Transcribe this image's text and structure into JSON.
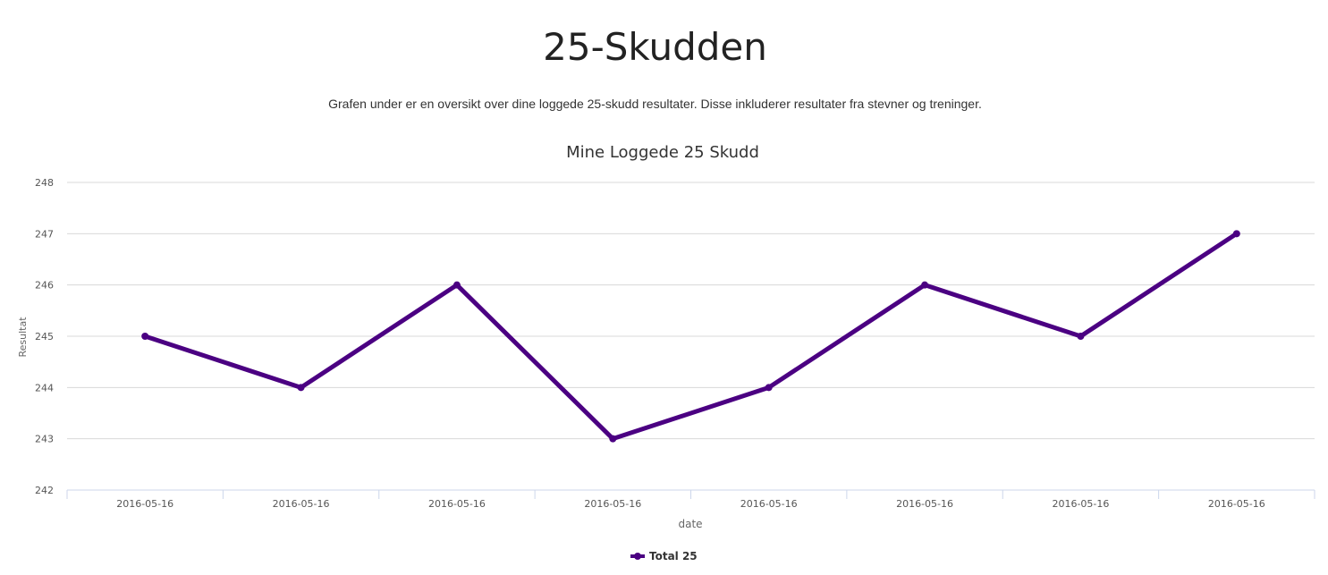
{
  "page": {
    "title": "25-Skudden",
    "description": "Grafen under er en oversikt over dine loggede 25-skudd resultater. Disse inkluderer resultater fra stevner og treninger."
  },
  "chart_data": {
    "type": "line",
    "title": "Mine Loggede 25 Skudd",
    "xlabel": "date",
    "ylabel": "Resultat",
    "categories": [
      "2016-05-16",
      "2016-05-16",
      "2016-05-16",
      "2016-05-16",
      "2016-05-16",
      "2016-05-16",
      "2016-05-16",
      "2016-05-16"
    ],
    "series": [
      {
        "name": "Total 25",
        "color": "#4b0082",
        "values": [
          245,
          244,
          246,
          243,
          244,
          246,
          245,
          247
        ]
      }
    ],
    "ylim": [
      242,
      248
    ],
    "yticks": [
      242,
      243,
      244,
      245,
      246,
      247,
      248
    ],
    "grid": true,
    "legend_position": "bottom-center"
  }
}
